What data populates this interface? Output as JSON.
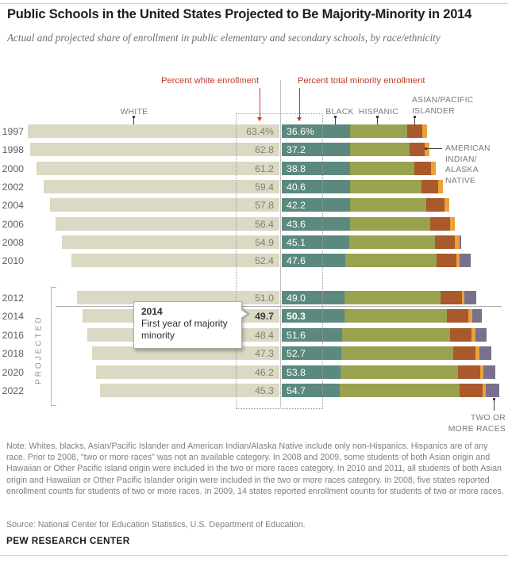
{
  "header": {
    "title": "Public Schools in the United States Projected to Be Majority-Minority in 2014",
    "subtitle": "Actual and projected share of enrollment in public elementary and secondary schools, by race/ethnicity"
  },
  "annotations": {
    "percent_white": "Percent white enrollment",
    "percent_minority": "Percent total minority enrollment",
    "white": "WHITE",
    "black": "BLACK",
    "hispanic": "HISPANIC",
    "asian_lines": [
      "ASIAN/PACIFIC",
      "ISLANDER"
    ],
    "amind_lines": [
      "AMERICAN",
      "INDIAN/",
      "ALASKA",
      "NATIVE"
    ],
    "two_lines": [
      "TWO OR",
      "MORE RACES"
    ],
    "projected": "PROJECTED",
    "callout": {
      "year": "2014",
      "text": "First year of majority minority"
    }
  },
  "chart_data": {
    "type": "bar",
    "orientation": "horizontal",
    "stacked": true,
    "categories": [
      "1997",
      "1998",
      "2000",
      "2002",
      "2004",
      "2006",
      "2008",
      "2010",
      "2012",
      "2014",
      "2016",
      "2018",
      "2020",
      "2022"
    ],
    "white_values": [
      63.4,
      62.8,
      61.2,
      59.4,
      57.8,
      56.4,
      54.9,
      52.4,
      51.0,
      49.7,
      48.4,
      47.3,
      46.2,
      45.3
    ],
    "minority_totals": [
      36.6,
      37.2,
      38.8,
      40.6,
      42.2,
      43.6,
      45.1,
      47.6,
      49.0,
      50.3,
      51.6,
      52.7,
      53.8,
      54.7
    ],
    "white_labels": [
      "63.4%",
      "62.8",
      "61.2",
      "59.4",
      "57.8",
      "56.4",
      "54.9",
      "52.4",
      "51.0",
      "49.7",
      "48.4",
      "47.3",
      "46.2",
      "45.3"
    ],
    "minority_labels": [
      "36.6%",
      "37.2",
      "38.8",
      "40.6",
      "42.2",
      "43.6",
      "45.1",
      "47.6",
      "49.0",
      "50.3",
      "51.6",
      "52.7",
      "53.8",
      "54.7"
    ],
    "highlight_year": "2014",
    "projected_years": [
      "2012",
      "2014",
      "2016",
      "2018",
      "2020",
      "2022"
    ],
    "series": [
      {
        "name": "White",
        "color": "#dbd8c3",
        "values": [
          63.4,
          62.8,
          61.2,
          59.4,
          57.8,
          56.4,
          54.9,
          52.4,
          51.0,
          49.7,
          48.4,
          47.3,
          46.2,
          45.3
        ]
      },
      {
        "name": "Black",
        "color": "#5b897e",
        "values": [
          17.1,
          17.1,
          17.1,
          17.1,
          17.2,
          17.1,
          17.0,
          16.0,
          15.8,
          15.7,
          15.2,
          15.0,
          14.8,
          14.5
        ]
      },
      {
        "name": "Hispanic",
        "color": "#99a24f",
        "values": [
          14.4,
          15.0,
          16.3,
          18.0,
          19.2,
          20.3,
          21.5,
          23.0,
          24.1,
          25.9,
          27.2,
          28.2,
          29.6,
          30.3
        ]
      },
      {
        "name": "Asian/Pacific Islander",
        "color": "#a9592c",
        "values": [
          3.9,
          3.9,
          4.2,
          4.3,
          4.6,
          5.0,
          5.0,
          4.9,
          5.4,
          5.4,
          5.4,
          5.6,
          5.6,
          5.7
        ]
      },
      {
        "name": "American Indian/Alaska Native",
        "color": "#e9a23b",
        "values": [
          1.2,
          1.2,
          1.2,
          1.2,
          1.2,
          1.2,
          1.2,
          0.9,
          0.7,
          0.9,
          0.9,
          0.9,
          0.7,
          0.9
        ]
      },
      {
        "name": "Two or more races",
        "color": "#79708e",
        "values": [
          0,
          0,
          0,
          0,
          0,
          0,
          0.4,
          2.8,
          3.0,
          2.4,
          2.9,
          3.0,
          3.1,
          3.3
        ]
      }
    ]
  },
  "note": {
    "text": "Note: Whites, blacks, Asian/Pacific Islander and American Indian/Alaska Native include only non-Hispanics. Hispanics are of any race. Prior to 2008, \"two or more races\" was not an available category. In 2008 and 2009, some students of both Asian origin and Hawaiian or Other Pacific Island origin were included in the two or more races category. In 2010 and 2011, all students of both Asian origin and Hawaiian or Other Pacific Islander origin were included in the two or more races category. In 2008, five states reported enrollment counts for students of two or more races. In 2009, 14 states reported enrollment counts for students of two or more races.",
    "source": "Source: National Center for Education Statistics, U.S. Department of Education."
  },
  "footer": "PEW RESEARCH CENTER"
}
